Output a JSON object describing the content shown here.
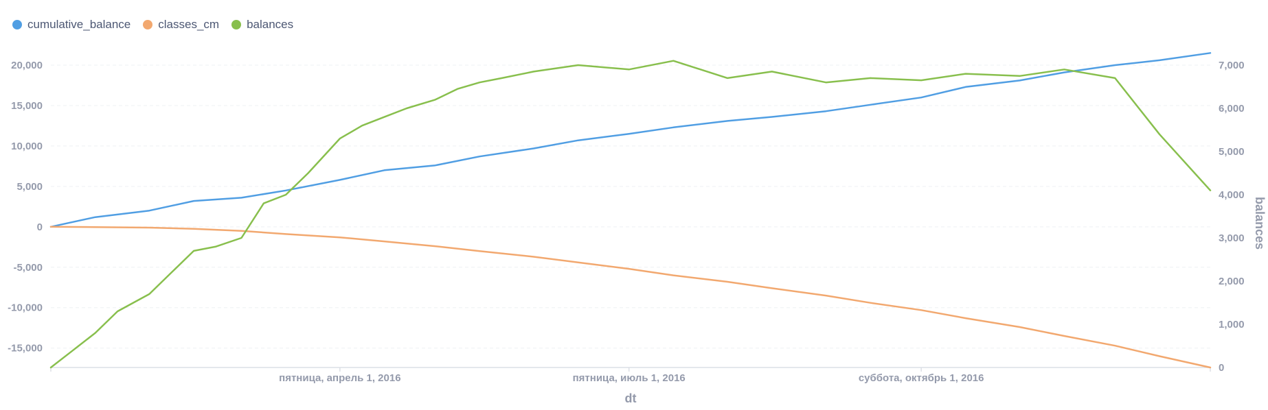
{
  "legend": [
    {
      "label": "cumulative_balance",
      "color": "#509ee3"
    },
    {
      "label": "classes_cm",
      "color": "#f2a86f"
    },
    {
      "label": "balances",
      "color": "#88bf4d"
    }
  ],
  "chart_data": {
    "type": "line",
    "xlabel": "dt",
    "ylabel_left": "",
    "ylabel_right": "balances",
    "x_range": [
      "2016-01-01",
      "2016-12-31"
    ],
    "x_ticks": [
      {
        "date": "2016-04-01",
        "label": "пятница, апрель 1, 2016"
      },
      {
        "date": "2016-07-01",
        "label": "пятница, июль 1, 2016"
      },
      {
        "date": "2016-10-01",
        "label": "суббота, октябрь 1, 2016"
      }
    ],
    "y_left": {
      "min": -17400,
      "max": 20000,
      "ticks": [
        -15000,
        -10000,
        -5000,
        0,
        5000,
        10000,
        15000,
        20000
      ],
      "tick_labels": [
        "-15,000",
        "-10,000",
        "-5,000",
        "0",
        "5,000",
        "10,000",
        "15,000",
        "20,000"
      ]
    },
    "y_right": {
      "min": 0,
      "max": 7000,
      "ticks": [
        0,
        1000,
        2000,
        3000,
        4000,
        5000,
        6000,
        7000
      ],
      "tick_labels": [
        "0",
        "1,000",
        "2,000",
        "3,000",
        "4,000",
        "5,000",
        "6,000",
        "7,000"
      ]
    },
    "grid": true,
    "legend_position": "top-left",
    "series": [
      {
        "name": "cumulative_balance",
        "color": "#509ee3",
        "axis": "left",
        "x": [
          "2016-01-01",
          "2016-01-15",
          "2016-02-01",
          "2016-02-15",
          "2016-03-01",
          "2016-03-15",
          "2016-04-01",
          "2016-04-15",
          "2016-05-01",
          "2016-05-15",
          "2016-06-01",
          "2016-06-15",
          "2016-07-01",
          "2016-07-15",
          "2016-08-01",
          "2016-08-15",
          "2016-09-01",
          "2016-09-15",
          "2016-10-01",
          "2016-10-15",
          "2016-11-01",
          "2016-11-15",
          "2016-12-01",
          "2016-12-15",
          "2016-12-31"
        ],
        "values": [
          0,
          1200,
          2000,
          3200,
          3600,
          4500,
          5800,
          7000,
          7600,
          8700,
          9700,
          10700,
          11500,
          12300,
          13100,
          13600,
          14300,
          15100,
          16000,
          17300,
          18100,
          19100,
          20000,
          20600,
          21500
        ]
      },
      {
        "name": "classes_cm",
        "color": "#f2a86f",
        "axis": "left",
        "x": [
          "2016-01-01",
          "2016-01-15",
          "2016-02-01",
          "2016-02-15",
          "2016-03-01",
          "2016-03-15",
          "2016-04-01",
          "2016-04-15",
          "2016-05-01",
          "2016-05-15",
          "2016-06-01",
          "2016-06-15",
          "2016-07-01",
          "2016-07-15",
          "2016-08-01",
          "2016-08-15",
          "2016-09-01",
          "2016-09-15",
          "2016-10-01",
          "2016-10-15",
          "2016-11-01",
          "2016-11-15",
          "2016-12-01",
          "2016-12-15",
          "2016-12-31"
        ],
        "values": [
          0,
          -30,
          -100,
          -250,
          -500,
          -900,
          -1300,
          -1800,
          -2400,
          -3000,
          -3700,
          -4400,
          -5200,
          -6000,
          -6800,
          -7600,
          -8500,
          -9400,
          -10300,
          -11300,
          -12400,
          -13500,
          -14700,
          -16000,
          -17400
        ]
      },
      {
        "name": "balances",
        "color": "#88bf4d",
        "axis": "right",
        "x": [
          "2016-01-01",
          "2016-01-08",
          "2016-01-15",
          "2016-01-22",
          "2016-02-01",
          "2016-02-08",
          "2016-02-15",
          "2016-02-22",
          "2016-03-01",
          "2016-03-08",
          "2016-03-15",
          "2016-03-22",
          "2016-04-01",
          "2016-04-08",
          "2016-04-15",
          "2016-04-22",
          "2016-05-01",
          "2016-05-08",
          "2016-05-15",
          "2016-05-22",
          "2016-06-01",
          "2016-06-15",
          "2016-07-01",
          "2016-07-15",
          "2016-08-01",
          "2016-08-15",
          "2016-09-01",
          "2016-09-15",
          "2016-10-01",
          "2016-10-15",
          "2016-11-01",
          "2016-11-15",
          "2016-12-01",
          "2016-12-15",
          "2016-12-31"
        ],
        "values": [
          0,
          400,
          800,
          1300,
          1700,
          2200,
          2700,
          2800,
          3000,
          3800,
          4000,
          4500,
          5300,
          5600,
          5800,
          6000,
          6200,
          6450,
          6600,
          6700,
          6850,
          7000,
          6900,
          7100,
          6700,
          6850,
          6600,
          6700,
          6650,
          6800,
          6750,
          6900,
          6700,
          5400,
          4100
        ]
      }
    ]
  }
}
